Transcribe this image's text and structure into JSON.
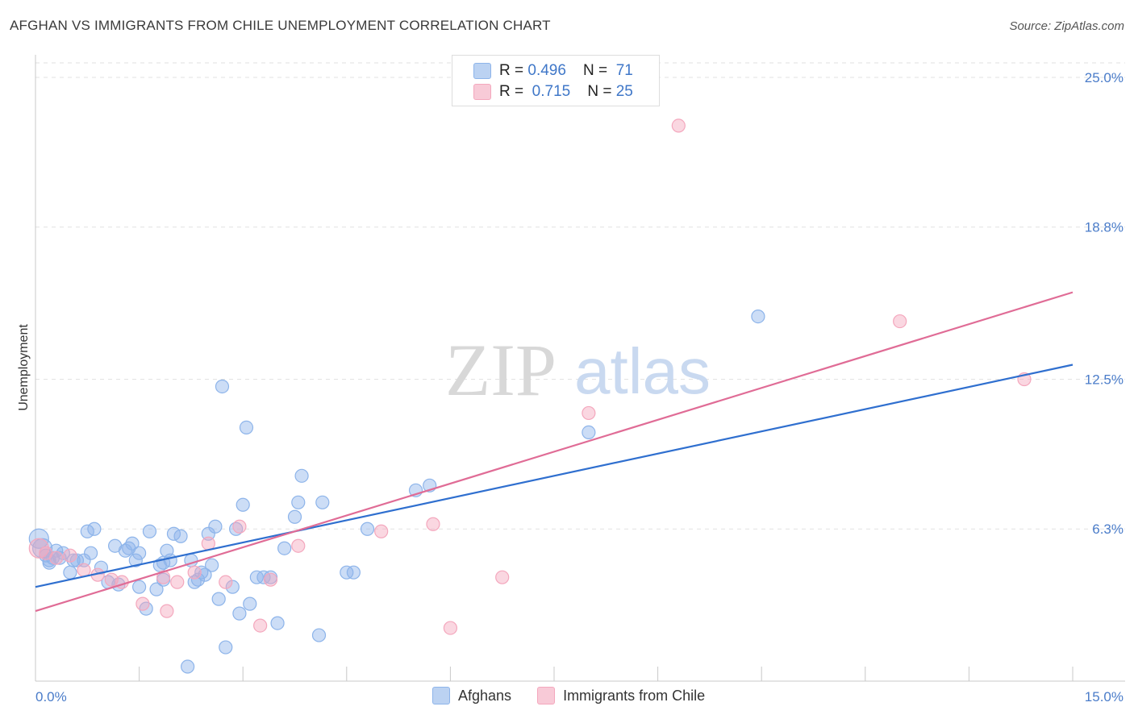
{
  "header": {
    "title": "AFGHAN VS IMMIGRANTS FROM CHILE UNEMPLOYMENT CORRELATION CHART",
    "source": "Source: ZipAtlas.com"
  },
  "watermark": {
    "zip": "ZIP",
    "atlas": "atlas"
  },
  "legend": {
    "rows": [
      {
        "r_label": "R = ",
        "r_value": "0.496",
        "n_label": "N = ",
        "n_value": "71",
        "color": "#8db4ea"
      },
      {
        "r_label": "R = ",
        "r_value": "0.715",
        "n_label": "N = ",
        "n_value": "25",
        "color": "#f4a7bd"
      }
    ]
  },
  "bottom_legend": {
    "items": [
      {
        "label": "Afghans",
        "color": "#8db4ea"
      },
      {
        "label": "Immigrants from Chile",
        "color": "#f4a7bd"
      }
    ]
  },
  "chart_data": {
    "type": "scatter",
    "title": "AFGHAN VS IMMIGRANTS FROM CHILE UNEMPLOYMENT CORRELATION CHART",
    "xlabel": "",
    "ylabel": "Unemployment",
    "xlim": [
      0,
      15
    ],
    "ylim": [
      0,
      25.6
    ],
    "x_tick_labels": [
      "0.0%",
      "15.0%"
    ],
    "y_ticks": [
      6.3,
      12.5,
      18.8,
      25.0
    ],
    "y_tick_labels": [
      "6.3%",
      "12.5%",
      "18.8%",
      "25.0%"
    ],
    "grid": true,
    "series": [
      {
        "name": "Afghans",
        "color": "#8db4ea",
        "line_color": "#2f6fcf",
        "trend": {
          "x": [
            0,
            15
          ],
          "y": [
            3.9,
            13.1
          ]
        },
        "points": [
          [
            0.05,
            5.9
          ],
          [
            0.1,
            5.5
          ],
          [
            0.15,
            5.2
          ],
          [
            0.2,
            5.0
          ],
          [
            0.25,
            5.1
          ],
          [
            0.3,
            5.4
          ],
          [
            0.35,
            5.1
          ],
          [
            0.4,
            5.3
          ],
          [
            0.5,
            4.5
          ],
          [
            0.55,
            5.0
          ],
          [
            0.6,
            5.0
          ],
          [
            0.7,
            5.0
          ],
          [
            0.8,
            5.3
          ],
          [
            0.85,
            6.3
          ],
          [
            0.75,
            6.2
          ],
          [
            0.95,
            4.7
          ],
          [
            1.05,
            4.1
          ],
          [
            1.15,
            5.6
          ],
          [
            1.2,
            4.0
          ],
          [
            1.3,
            5.4
          ],
          [
            1.35,
            5.5
          ],
          [
            1.4,
            5.7
          ],
          [
            1.45,
            5.0
          ],
          [
            1.5,
            5.3
          ],
          [
            1.5,
            3.9
          ],
          [
            1.6,
            3.0
          ],
          [
            1.65,
            6.2
          ],
          [
            1.75,
            3.8
          ],
          [
            1.8,
            4.8
          ],
          [
            1.85,
            4.2
          ],
          [
            1.9,
            5.4
          ],
          [
            1.95,
            5.0
          ],
          [
            2.0,
            6.1
          ],
          [
            2.1,
            6.0
          ],
          [
            2.2,
            0.6
          ],
          [
            2.25,
            5.0
          ],
          [
            2.3,
            4.1
          ],
          [
            2.35,
            4.2
          ],
          [
            2.4,
            4.5
          ],
          [
            2.45,
            4.4
          ],
          [
            2.5,
            6.1
          ],
          [
            2.55,
            4.8
          ],
          [
            2.6,
            6.4
          ],
          [
            2.65,
            3.4
          ],
          [
            2.7,
            12.2
          ],
          [
            2.75,
            1.4
          ],
          [
            2.85,
            3.9
          ],
          [
            2.9,
            6.3
          ],
          [
            2.95,
            2.8
          ],
          [
            3.0,
            7.3
          ],
          [
            3.05,
            10.5
          ],
          [
            3.1,
            3.2
          ],
          [
            3.2,
            4.3
          ],
          [
            3.3,
            4.3
          ],
          [
            3.4,
            4.3
          ],
          [
            3.5,
            2.4
          ],
          [
            3.6,
            5.5
          ],
          [
            3.75,
            6.8
          ],
          [
            3.8,
            7.4
          ],
          [
            3.85,
            8.5
          ],
          [
            4.1,
            1.9
          ],
          [
            4.15,
            7.4
          ],
          [
            4.5,
            4.5
          ],
          [
            4.6,
            4.5
          ],
          [
            4.8,
            6.3
          ],
          [
            5.5,
            7.9
          ],
          [
            5.7,
            8.1
          ],
          [
            8.0,
            10.3
          ],
          [
            10.45,
            15.1
          ],
          [
            0.2,
            4.9
          ],
          [
            1.85,
            4.9
          ]
        ]
      },
      {
        "name": "Immigrants from Chile",
        "color": "#f4a7bd",
        "line_color": "#e06c96",
        "trend": {
          "x": [
            0,
            15
          ],
          "y": [
            2.9,
            16.1
          ]
        },
        "points": [
          [
            0.05,
            5.5
          ],
          [
            0.15,
            5.3
          ],
          [
            0.3,
            5.1
          ],
          [
            0.5,
            5.2
          ],
          [
            0.7,
            4.6
          ],
          [
            0.9,
            4.4
          ],
          [
            1.1,
            4.2
          ],
          [
            1.25,
            4.1
          ],
          [
            1.55,
            3.2
          ],
          [
            1.85,
            4.3
          ],
          [
            1.9,
            2.9
          ],
          [
            2.05,
            4.1
          ],
          [
            2.3,
            4.5
          ],
          [
            2.5,
            5.7
          ],
          [
            2.75,
            4.1
          ],
          [
            2.95,
            6.4
          ],
          [
            3.25,
            2.3
          ],
          [
            3.4,
            4.2
          ],
          [
            3.8,
            5.6
          ],
          [
            5.0,
            6.2
          ],
          [
            5.75,
            6.5
          ],
          [
            6.0,
            2.2
          ],
          [
            6.75,
            4.3
          ],
          [
            8.0,
            11.1
          ],
          [
            9.3,
            23.0
          ],
          [
            12.5,
            14.9
          ],
          [
            14.3,
            12.5
          ]
        ]
      }
    ]
  }
}
